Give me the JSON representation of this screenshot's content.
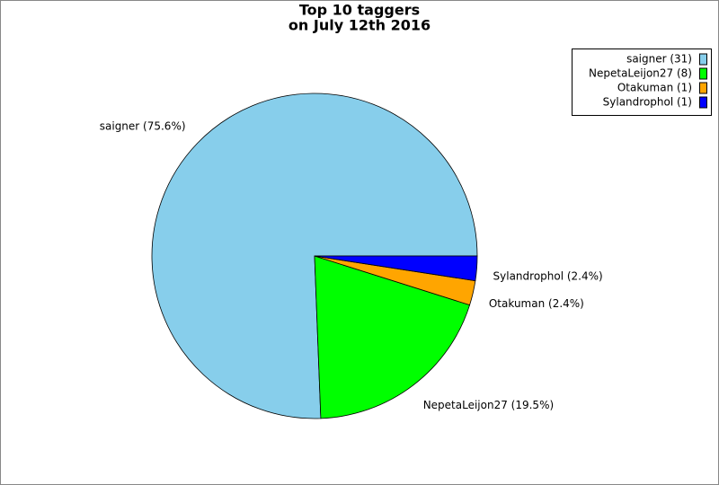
{
  "chart_data": {
    "type": "pie",
    "title": "Top 10 taggers",
    "subtitle": "on July 12th 2016",
    "categories": [
      "saigner",
      "NepetaLeijon27",
      "Otakuman",
      "Sylandrophol"
    ],
    "values": [
      31,
      8,
      1,
      1
    ],
    "value_labels": [
      "saigner (75.6%)",
      "NepetaLeijon27 (19.5%)",
      "Otakuman (2.4%)",
      "Sylandrophol (2.4%)"
    ],
    "legend_labels": [
      "saigner (31)",
      "NepetaLeijon27 (8)",
      "Otakuman (1)",
      "Sylandrophol (1)"
    ],
    "colors": [
      "#87ceeb",
      "#00ff00",
      "#ffa500",
      "#0000ff"
    ],
    "legend": "top-right"
  }
}
